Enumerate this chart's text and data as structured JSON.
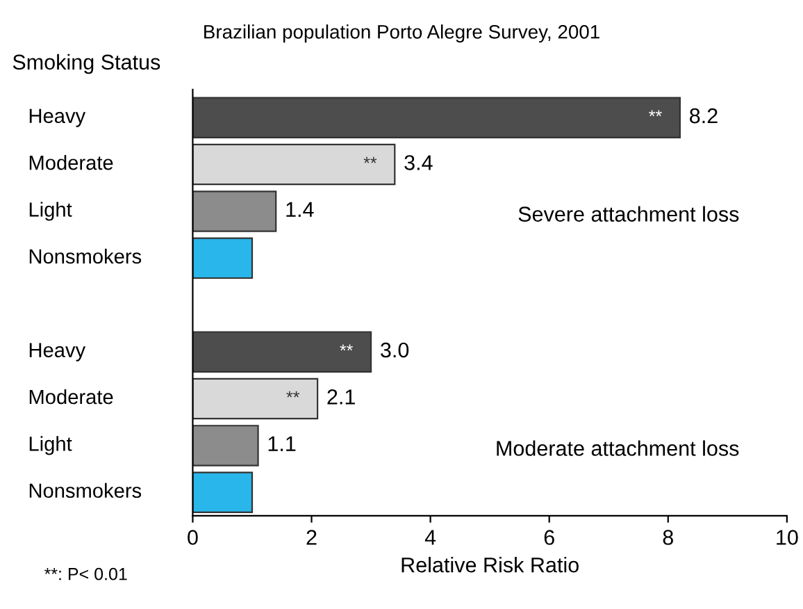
{
  "chart_data": {
    "type": "bar",
    "orientation": "horizontal",
    "title": "Brazilian population Porto Alegre Survey, 2001",
    "ylabel": "Smoking Status",
    "xlabel": "Relative Risk Ratio",
    "categories": [
      "Heavy",
      "Moderate",
      "Light",
      "Nonsmokers",
      null,
      "Heavy",
      "Moderate",
      "Light",
      "Nonsmokers"
    ],
    "values": [
      8.2,
      3.4,
      1.4,
      1.0,
      null,
      3.0,
      2.1,
      1.1,
      1.0
    ],
    "colors": [
      "#4d4d4d",
      "#d9d9d9",
      "#8c8c8c",
      "#29b6ea",
      null,
      "#4d4d4d",
      "#d9d9d9",
      "#8c8c8c",
      "#29b6ea"
    ],
    "value_labels": [
      "8.2",
      "3.4",
      "1.4",
      null,
      null,
      "3.0",
      "2.1",
      "1.1",
      null
    ],
    "xlim": [
      0,
      10
    ],
    "xticks": [
      0,
      2,
      4,
      6,
      8,
      10
    ],
    "grid": false,
    "legend": false,
    "annotations": [
      "**",
      "**",
      "**",
      "**",
      "Severe attachment loss",
      "Moderate attachment loss",
      "**: P< 0.01"
    ]
  }
}
